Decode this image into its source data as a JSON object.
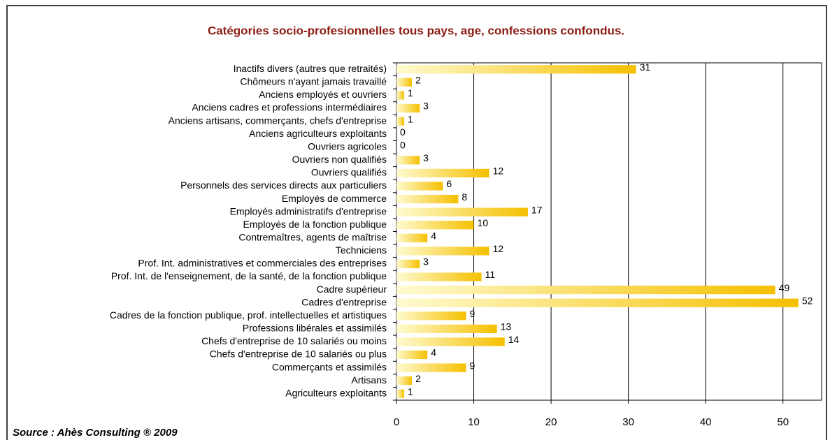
{
  "chart_data": {
    "type": "bar",
    "orientation": "horizontal",
    "title": "Catégories socio-profesionnelles tous pays, age, confessions confondus.",
    "source": "Source : Ahès Consulting ® 2009",
    "categories": [
      "Inactifs divers (autres que retraités)",
      "Chômeurs n'ayant jamais travaillé",
      "Anciens employés et ouvriers",
      "Anciens cadres et professions intermédiaires",
      "Anciens artisans, commerçants, chefs d'entreprise",
      "Anciens agriculteurs exploitants",
      "Ouvriers agricoles",
      "Ouvriers non qualifiés",
      "Ouvriers qualifiés",
      "Personnels des services directs aux particuliers",
      "Employés de commerce",
      "Employés administratifs d'entreprise",
      "Employés de la fonction publique",
      "Contremaîtres, agents de maîtrise",
      "Techniciens",
      "Prof. Int. administratives et commerciales des entreprises",
      "Prof. Int. de l'enseignement, de la santé, de la fonction publique",
      "Cadre supérieur",
      "Cadres d'entreprise",
      "Cadres de la fonction publique, prof. intellectuelles et  artistiques",
      "Professions libérales et assimilés",
      "Chefs d'entreprise de 10 salariés ou moins",
      "Chefs d'entreprise de 10 salariés ou plus",
      "Commerçants et assimilés",
      "Artisans",
      "Agriculteurs exploitants"
    ],
    "values": [
      31,
      2,
      1,
      3,
      1,
      0,
      0,
      3,
      12,
      6,
      8,
      17,
      10,
      4,
      12,
      3,
      11,
      49,
      52,
      9,
      13,
      14,
      4,
      9,
      2,
      1
    ],
    "color": "#f5c000",
    "xlim": [
      0,
      55
    ],
    "xticks": [
      0,
      10,
      20,
      30,
      40,
      50
    ],
    "grid": true
  }
}
